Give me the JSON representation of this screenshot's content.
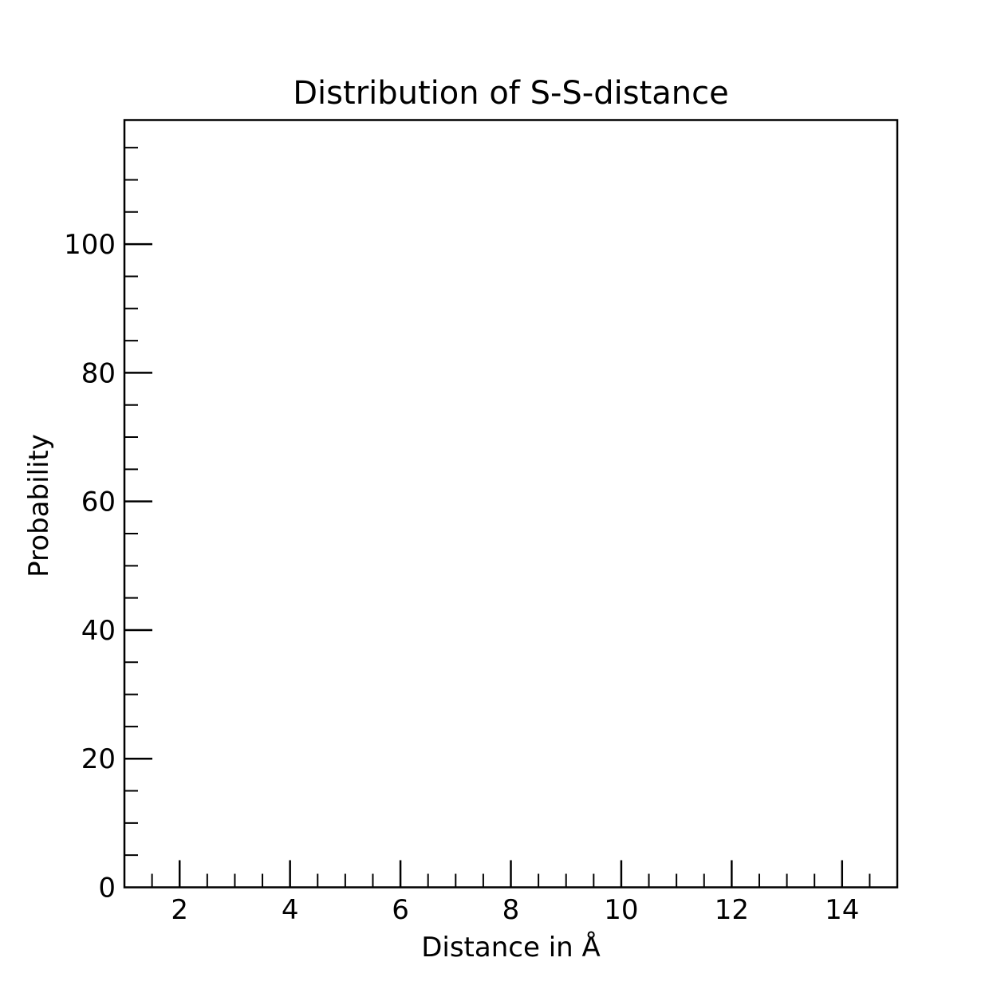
{
  "chart_data": {
    "type": "bar",
    "title": "Distribution of S-S-distance",
    "xlabel": "Distance in Å",
    "ylabel": "Probability",
    "xlim": [
      1,
      15
    ],
    "ylim": [
      0,
      119.3
    ],
    "x_major_ticks": [
      2,
      4,
      6,
      8,
      10,
      12,
      14
    ],
    "x_minor_step": 0.5,
    "y_major_ticks": [
      0,
      20,
      40,
      60,
      80,
      100
    ],
    "y_minor_step": 5,
    "grid": false,
    "legend": "none",
    "series": []
  }
}
